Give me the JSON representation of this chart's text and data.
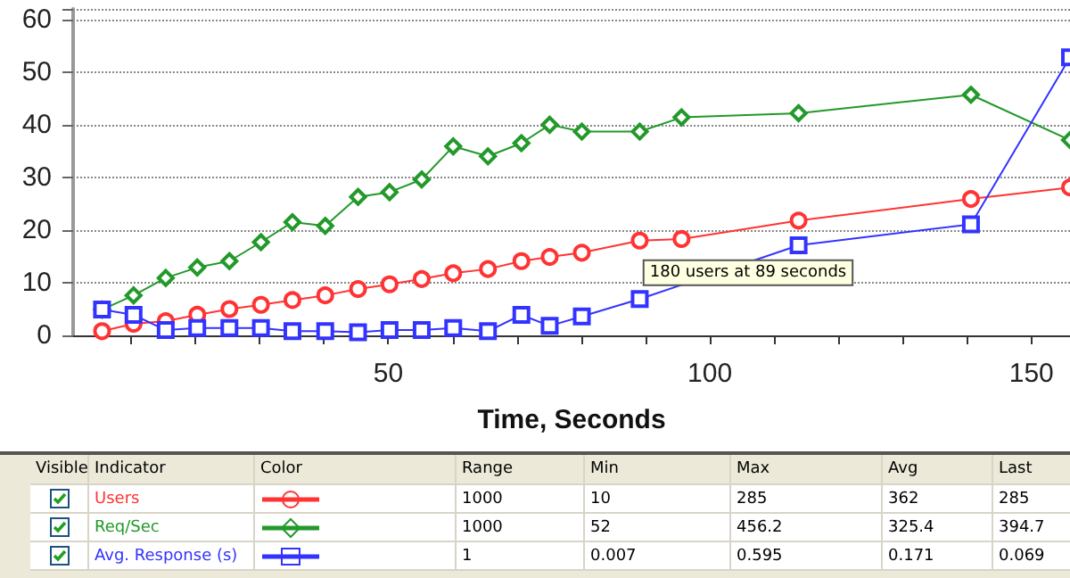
{
  "chart_data": {
    "type": "line",
    "xlabel": "Time, Seconds",
    "x": [
      5.5,
      10.4,
      15.4,
      20.3,
      25.3,
      30.2,
      35.1,
      40.2,
      45.3,
      50.2,
      55.2,
      60.1,
      65.5,
      70.7,
      75.1,
      80.1,
      89.1,
      95.6,
      113.8,
      140.6,
      156
    ],
    "series": [
      {
        "name": "Users",
        "color": "#ff3333",
        "marker": "circle",
        "values": [
          0.8,
          2.2,
          2.7,
          3.9,
          5.0,
          5.8,
          6.7,
          7.6,
          8.8,
          9.7,
          10.7,
          11.8,
          12.6,
          14.1,
          14.9,
          15.7,
          18.0,
          18.3,
          21.8,
          25.9,
          28.1
        ]
      },
      {
        "name": "Req/Sec",
        "color": "#22992a",
        "marker": "diamond",
        "values": [
          4.9,
          7.6,
          10.9,
          12.9,
          14.1,
          17.7,
          21.5,
          20.8,
          26.3,
          27.2,
          29.6,
          35.9,
          34.0,
          36.5,
          40.0,
          38.7,
          38.7,
          41.4,
          42.2,
          45.7,
          37.1
        ]
      },
      {
        "name": "Avg. Response (s)",
        "color": "#3333ff",
        "marker": "square",
        "values": [
          4.9,
          3.9,
          1.0,
          1.4,
          1.4,
          1.4,
          0.8,
          0.8,
          0.6,
          1.0,
          1.0,
          1.4,
          0.8,
          3.9,
          1.8,
          3.6,
          6.9,
          null,
          17.1,
          21.1,
          52.8
        ]
      }
    ],
    "xlim": [
      1,
      156
    ],
    "xticks": [
      {
        "value": 10,
        "label": null
      },
      {
        "value": 20,
        "label": null
      },
      {
        "value": 30,
        "label": null
      },
      {
        "value": 40,
        "label": null
      },
      50,
      {
        "value": 60,
        "label": null
      },
      {
        "value": 70,
        "label": null
      },
      {
        "value": 80,
        "label": null
      },
      {
        "value": 90,
        "label": null
      },
      100,
      {
        "value": 110,
        "label": null
      },
      {
        "value": 120,
        "label": null
      },
      {
        "value": 130,
        "label": null
      },
      {
        "value": 140,
        "label": null
      },
      150
    ],
    "ylim": [
      0,
      62
    ],
    "yticks": [
      0,
      10,
      20,
      30,
      40,
      50,
      60
    ],
    "grid": "y",
    "legend": "bottom",
    "line_style": "solid",
    "annotations": [
      {
        "text": "180 users at 89 seconds",
        "x": 89,
        "y": 18.0
      },
      "Visible",
      "Indicator",
      "Color",
      "Range",
      "Min",
      "Max",
      "Avg",
      "Last",
      "1000",
      "10",
      "285",
      "362",
      "285",
      "1000",
      "52",
      "456.2",
      "325.4",
      "394.7",
      "1",
      "0.007",
      "0.595",
      "0.171",
      "0.069"
    ]
  }
}
